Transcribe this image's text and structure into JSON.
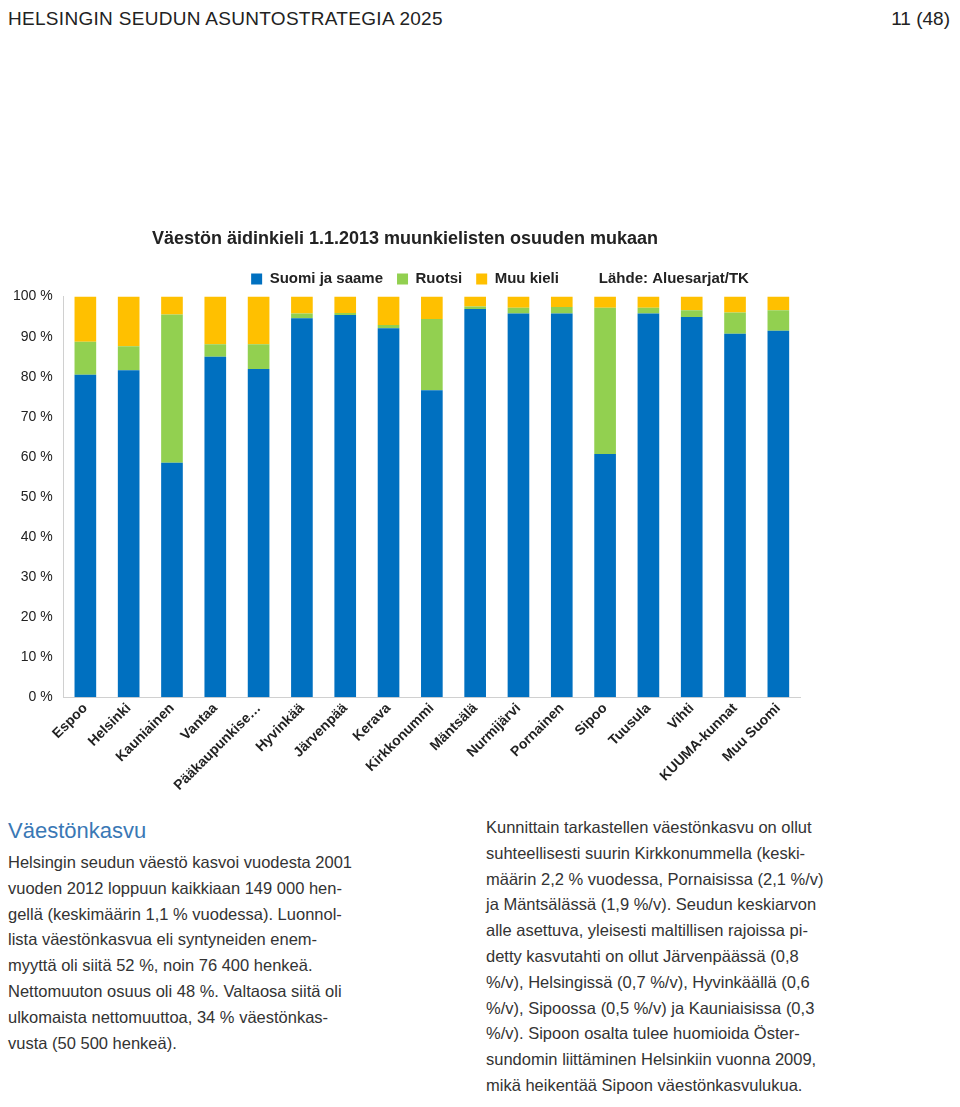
{
  "header": {
    "left": "HELSINGIN SEUDUN ASUNTOSTRATEGIA 2025",
    "right": "11 (48)"
  },
  "chart_data": {
    "type": "bar",
    "title": "Väestön äidinkieli 1.1.2013 muunkielisten osuuden mukaan",
    "source": "Lähde: Aluesarjat/TK",
    "stacked": true,
    "grid": false,
    "legend": "top",
    "categories": [
      "Espoo",
      "Helsinki",
      "Kauniainen",
      "Vantaa",
      "Pääkaupunkise…",
      "Hyvinkää",
      "Järvenpää",
      "Kerava",
      "Kirkkonummi",
      "Mäntsälä",
      "Nurmijärvi",
      "Pornainen",
      "Sipoo",
      "Tuusula",
      "Vihti",
      "KUUMA-kunnat",
      "Muu Suomi"
    ],
    "series": [
      {
        "name": "Suomi ja saame",
        "color": "#0070c0",
        "values": [
          80.5,
          81.6,
          58.5,
          85.0,
          81.9,
          94.6,
          95.4,
          92.1,
          76.6,
          96.9,
          95.8,
          95.8,
          60.7,
          95.8,
          94.9,
          90.7,
          91.5
        ]
      },
      {
        "name": "Ruotsi",
        "color": "#92d050",
        "values": [
          8.2,
          6.0,
          37.0,
          3.1,
          6.2,
          1.2,
          0.5,
          0.8,
          17.8,
          0.6,
          1.4,
          1.6,
          36.5,
          1.4,
          1.7,
          5.3,
          5.1
        ]
      },
      {
        "name": "Muu kieli",
        "color": "#ffc000",
        "values": [
          11.3,
          12.4,
          4.5,
          11.9,
          11.9,
          4.2,
          4.1,
          7.1,
          5.6,
          2.5,
          2.8,
          2.6,
          2.8,
          2.8,
          3.4,
          4.0,
          3.4
        ]
      }
    ],
    "ylim": [
      0,
      100
    ],
    "yticks": [
      {
        "value": 0,
        "label": "0 %"
      },
      {
        "value": 10,
        "label": "10 %"
      },
      {
        "value": 20,
        "label": "20 %"
      },
      {
        "value": 30,
        "label": "30 %"
      },
      {
        "value": 40,
        "label": "40 %"
      },
      {
        "value": 50,
        "label": "50 %"
      },
      {
        "value": 60,
        "label": "60 %"
      },
      {
        "value": 70,
        "label": "70 %"
      },
      {
        "value": 80,
        "label": "80 %"
      },
      {
        "value": 90,
        "label": "90 %"
      },
      {
        "value": 100,
        "label": "100 %"
      }
    ]
  },
  "section": {
    "heading": "Väestönkasvu",
    "left_lines": [
      "Helsingin seudun väestö kasvoi vuodesta 2001",
      "vuoden 2012 loppuun kaikkiaan 149 000 hen-",
      "gellä (keskimäärin 1,1 % vuodessa). Luonnol-",
      "lista väestönkasvua eli syntyneiden enem-",
      "myyttä oli siitä 52 %, noin 76 400 henkeä.",
      "Nettomuuton osuus oli 48 %. Valtaosa siitä oli",
      "ulkomaista nettomuuttoa, 34 % väestönkas-",
      "vusta (50 500 henkeä)."
    ],
    "right_lines": [
      "Kunnittain tarkastellen väestönkasvu on ollut",
      "suhteellisesti suurin Kirkkonummella (keski-",
      "määrin 2,2 % vuodessa, Pornaisissa (2,1 %/v)",
      "ja Mäntsälässä (1,9 %/v). Seudun keskiarvon",
      "alle asettuva, yleisesti maltillisen rajoissa pi-",
      "detty kasvutahti on ollut Järvenpäässä (0,8",
      "%/v), Helsingissä (0,7 %/v), Hyvinkäällä (0,6",
      "%/v), Sipoossa (0,5 %/v) ja Kauniaisissa (0,3",
      "%/v). Sipoon osalta tulee huomioida Öster-",
      "sundomin liittäminen Helsinkiin vuonna 2009,",
      "mikä heikentää Sipoon väestönkasvulukua."
    ]
  }
}
